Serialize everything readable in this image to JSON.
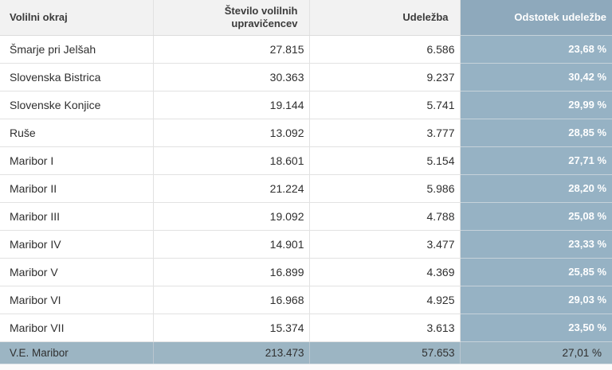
{
  "table": {
    "columns": {
      "district": "Volilni okraj",
      "eligible": "Število volilnih upravičencev",
      "turnout": "Udeležba",
      "percent": "Odstotek udeležbe"
    },
    "rows": [
      {
        "district": "Šmarje pri Jelšah",
        "eligible": "27.815",
        "turnout": "6.586",
        "percent": "23,68 %"
      },
      {
        "district": "Slovenska Bistrica",
        "eligible": "30.363",
        "turnout": "9.237",
        "percent": "30,42 %"
      },
      {
        "district": "Slovenske Konjice",
        "eligible": "19.144",
        "turnout": "5.741",
        "percent": "29,99 %"
      },
      {
        "district": "Ruše",
        "eligible": "13.092",
        "turnout": "3.777",
        "percent": "28,85 %"
      },
      {
        "district": "Maribor I",
        "eligible": "18.601",
        "turnout": "5.154",
        "percent": "27,71 %"
      },
      {
        "district": "Maribor II",
        "eligible": "21.224",
        "turnout": "5.986",
        "percent": "28,20 %"
      },
      {
        "district": "Maribor III",
        "eligible": "19.092",
        "turnout": "4.788",
        "percent": "25,08 %"
      },
      {
        "district": "Maribor IV",
        "eligible": "14.901",
        "turnout": "3.477",
        "percent": "23,33 %"
      },
      {
        "district": "Maribor V",
        "eligible": "16.899",
        "turnout": "4.369",
        "percent": "25,85 %"
      },
      {
        "district": "Maribor VI",
        "eligible": "16.968",
        "turnout": "4.925",
        "percent": "29,03 %"
      },
      {
        "district": "Maribor VII",
        "eligible": "15.374",
        "turnout": "3.613",
        "percent": "23,50 %"
      }
    ],
    "total": {
      "district": "V.E. Maribor",
      "eligible": "213.473",
      "turnout": "57.653",
      "percent": "27,01 %"
    }
  },
  "colors": {
    "header_bg": "#f2f2f2",
    "header_text": "#3b3b3b",
    "accent_header_bg": "#8ea9bc",
    "accent_cell_bg": "#96b2c4",
    "accent_text": "#ffffff",
    "total_row_bg": "#9cb5c3",
    "body_text": "#2f2f2f",
    "grid_line": "#e2e2e2"
  }
}
